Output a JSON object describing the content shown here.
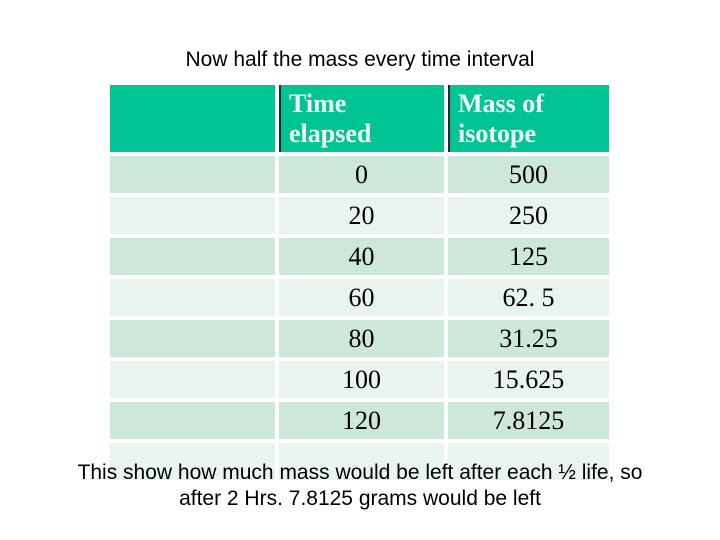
{
  "colors": {
    "header-bg": "#00C493",
    "row-dark": "#CDE8DB",
    "row-light": "#E9F4EE",
    "header-divider": "#1E2B27",
    "header-text": "#F0FBF6",
    "body-text": "#000000"
  },
  "slide": {
    "title": "Now half the mass every time interval",
    "caption": {
      "line1": "This show how much mass would be left after each ½ life, so",
      "line2": "after 2 Hrs. 7.8125 grams would be left"
    }
  },
  "table": {
    "headers": {
      "label_col": "",
      "time_col": "Time elapsed",
      "mass_col": "Mass of isotope"
    },
    "rows": [
      {
        "time": "0",
        "mass": "500"
      },
      {
        "time": "20",
        "mass": "250"
      },
      {
        "time": "40",
        "mass": "125"
      },
      {
        "time": "60",
        "mass": "62. 5"
      },
      {
        "time": "80",
        "mass": "31.25"
      },
      {
        "time": "100",
        "mass": "15.625"
      },
      {
        "time": "120",
        "mass": "7.8125"
      },
      {
        "time": "",
        "mass": ""
      }
    ]
  }
}
